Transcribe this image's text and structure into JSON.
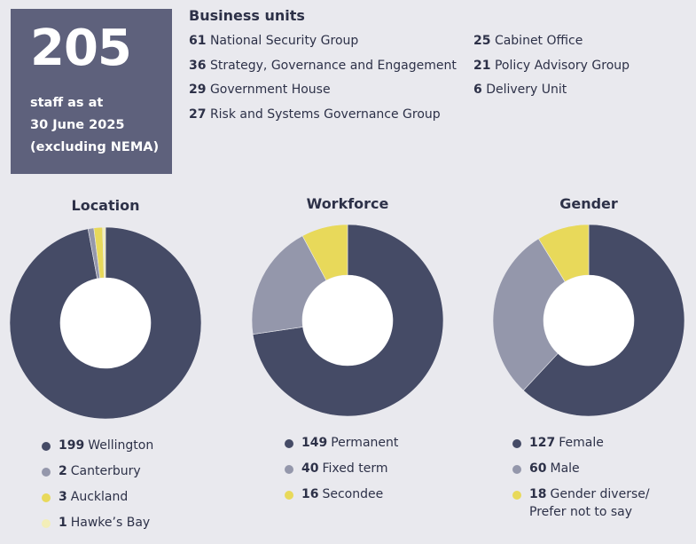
{
  "stat": {
    "value": 205,
    "label_lines": [
      "staff as at",
      "30 June 2025",
      "(excluding NEMA)"
    ]
  },
  "business_units": {
    "title": "Business units",
    "items": [
      {
        "count": 61,
        "name": "National Security Group"
      },
      {
        "count": 36,
        "name": "Strategy, Governance and Engagement"
      },
      {
        "count": 29,
        "name": "Government House"
      },
      {
        "count": 27,
        "name": "Risk and Systems Governance Group"
      },
      {
        "count": 25,
        "name": "Cabinet Office"
      },
      {
        "count": 21,
        "name": "Policy Advisory Group"
      },
      {
        "count": 6,
        "name": "Delivery Unit"
      }
    ]
  },
  "chart_data": [
    {
      "type": "pie",
      "title": "Location",
      "categories": [
        "Wellington",
        "Canterbury",
        "Auckland",
        "Hawke’s Bay"
      ],
      "values": [
        199,
        2,
        3,
        1
      ],
      "colors": [
        "#454b66",
        "#9497ab",
        "#e8d95a",
        "#f3eeb8"
      ]
    },
    {
      "type": "pie",
      "title": "Workforce",
      "categories": [
        "Permanent",
        "Fixed term",
        "Secondee"
      ],
      "values": [
        149,
        40,
        16
      ],
      "colors": [
        "#454b66",
        "#9497ab",
        "#e8d95a"
      ]
    },
    {
      "type": "pie",
      "title": "Gender",
      "categories": [
        "Female",
        "Male",
        "Gender diverse/ Prefer not to say"
      ],
      "values": [
        127,
        60,
        18
      ],
      "colors": [
        "#454b66",
        "#9497ab",
        "#e8d95a"
      ]
    }
  ]
}
